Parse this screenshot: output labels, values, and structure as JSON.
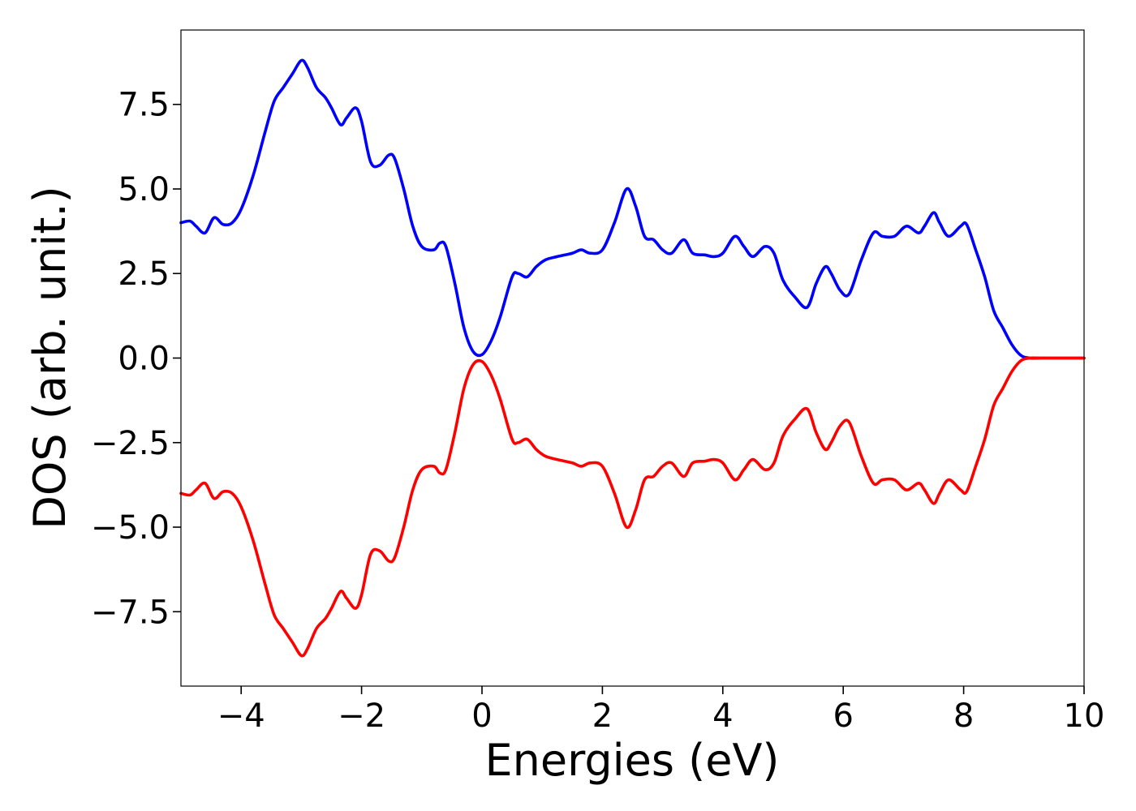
{
  "chart_data": {
    "type": "line",
    "xlabel": "Energies (eV)",
    "ylabel": "DOS (arb. unit.)",
    "xlim": [
      -5,
      10
    ],
    "ylim": [
      -9.7,
      9.7
    ],
    "xticks": [
      -4,
      -2,
      0,
      2,
      4,
      6,
      8,
      10
    ],
    "xtick_labels": [
      "−4",
      "−2",
      "0",
      "2",
      "4",
      "6",
      "8",
      "10"
    ],
    "yticks": [
      -7.5,
      -5.0,
      -2.5,
      0.0,
      2.5,
      5.0,
      7.5
    ],
    "ytick_labels": [
      "−7.5",
      "−5.0",
      "−2.5",
      "0.0",
      "2.5",
      "5.0",
      "7.5"
    ],
    "grid": false,
    "series": [
      {
        "color": "#0000ff",
        "x": [
          -5.0,
          -4.85,
          -4.75,
          -4.6,
          -4.45,
          -4.3,
          -4.15,
          -4.0,
          -3.8,
          -3.6,
          -3.45,
          -3.3,
          -3.15,
          -3.0,
          -2.9,
          -2.75,
          -2.6,
          -2.5,
          -2.35,
          -2.25,
          -2.1,
          -2.0,
          -1.85,
          -1.7,
          -1.55,
          -1.45,
          -1.3,
          -1.15,
          -1.0,
          -0.8,
          -0.7,
          -0.6,
          -0.45,
          -0.3,
          -0.15,
          0.0,
          0.15,
          0.3,
          0.5,
          0.6,
          0.75,
          0.9,
          1.05,
          1.25,
          1.5,
          1.65,
          1.8,
          2.0,
          2.2,
          2.4,
          2.55,
          2.7,
          2.85,
          3.0,
          3.15,
          3.35,
          3.5,
          3.7,
          3.85,
          4.0,
          4.2,
          4.35,
          4.5,
          4.7,
          4.85,
          5.0,
          5.2,
          5.4,
          5.55,
          5.7,
          5.8,
          5.95,
          6.1,
          6.3,
          6.5,
          6.65,
          6.85,
          7.05,
          7.25,
          7.35,
          7.5,
          7.6,
          7.75,
          7.95,
          8.05,
          8.2,
          8.35,
          8.5,
          8.65,
          8.8,
          8.95,
          9.1,
          9.3,
          10.0
        ],
        "y": [
          4.0,
          4.05,
          3.9,
          3.7,
          4.15,
          3.95,
          4.0,
          4.4,
          5.4,
          6.7,
          7.6,
          8.0,
          8.4,
          8.8,
          8.6,
          8.0,
          7.7,
          7.4,
          6.9,
          7.1,
          7.4,
          7.0,
          5.8,
          5.7,
          6.0,
          5.9,
          5.0,
          3.9,
          3.3,
          3.2,
          3.4,
          3.3,
          2.2,
          0.9,
          0.2,
          0.1,
          0.5,
          1.2,
          2.4,
          2.5,
          2.4,
          2.7,
          2.9,
          3.0,
          3.1,
          3.2,
          3.1,
          3.2,
          4.0,
          5.0,
          4.5,
          3.6,
          3.5,
          3.2,
          3.1,
          3.5,
          3.1,
          3.05,
          3.0,
          3.1,
          3.6,
          3.3,
          3.0,
          3.3,
          3.1,
          2.3,
          1.8,
          1.5,
          2.2,
          2.7,
          2.5,
          2.0,
          1.9,
          2.9,
          3.7,
          3.6,
          3.6,
          3.9,
          3.7,
          3.9,
          4.3,
          4.0,
          3.6,
          3.9,
          3.95,
          3.2,
          2.4,
          1.4,
          0.9,
          0.4,
          0.08,
          0.0,
          0.0,
          0.0
        ]
      },
      {
        "color": "#ff0000",
        "x": [
          -5.0,
          -4.85,
          -4.75,
          -4.6,
          -4.45,
          -4.3,
          -4.15,
          -4.0,
          -3.8,
          -3.6,
          -3.45,
          -3.3,
          -3.15,
          -3.0,
          -2.9,
          -2.75,
          -2.6,
          -2.5,
          -2.35,
          -2.25,
          -2.1,
          -2.0,
          -1.85,
          -1.7,
          -1.55,
          -1.45,
          -1.3,
          -1.15,
          -1.0,
          -0.8,
          -0.7,
          -0.6,
          -0.45,
          -0.3,
          -0.15,
          0.0,
          0.15,
          0.3,
          0.5,
          0.6,
          0.75,
          0.9,
          1.05,
          1.25,
          1.5,
          1.65,
          1.8,
          2.0,
          2.2,
          2.4,
          2.55,
          2.7,
          2.85,
          3.0,
          3.15,
          3.35,
          3.5,
          3.7,
          3.85,
          4.0,
          4.2,
          4.35,
          4.5,
          4.7,
          4.85,
          5.0,
          5.2,
          5.4,
          5.55,
          5.7,
          5.8,
          5.95,
          6.1,
          6.3,
          6.5,
          6.65,
          6.85,
          7.05,
          7.25,
          7.35,
          7.5,
          7.6,
          7.75,
          7.95,
          8.05,
          8.2,
          8.35,
          8.5,
          8.65,
          8.8,
          8.95,
          9.1,
          9.3,
          10.0
        ],
        "y": [
          -4.0,
          -4.05,
          -3.9,
          -3.7,
          -4.15,
          -3.95,
          -4.0,
          -4.4,
          -5.4,
          -6.7,
          -7.6,
          -8.0,
          -8.4,
          -8.8,
          -8.6,
          -8.0,
          -7.7,
          -7.4,
          -6.9,
          -7.1,
          -7.4,
          -7.0,
          -5.8,
          -5.7,
          -6.0,
          -5.9,
          -5.0,
          -3.9,
          -3.3,
          -3.2,
          -3.4,
          -3.3,
          -2.2,
          -0.9,
          -0.2,
          -0.1,
          -0.5,
          -1.2,
          -2.4,
          -2.5,
          -2.4,
          -2.7,
          -2.9,
          -3.0,
          -3.1,
          -3.2,
          -3.1,
          -3.2,
          -4.0,
          -5.0,
          -4.5,
          -3.6,
          -3.5,
          -3.2,
          -3.1,
          -3.5,
          -3.1,
          -3.05,
          -3.0,
          -3.1,
          -3.6,
          -3.3,
          -3.0,
          -3.3,
          -3.1,
          -2.3,
          -1.8,
          -1.5,
          -2.2,
          -2.7,
          -2.5,
          -2.0,
          -1.9,
          -2.9,
          -3.7,
          -3.6,
          -3.6,
          -3.9,
          -3.7,
          -3.9,
          -4.3,
          -4.0,
          -3.6,
          -3.9,
          -3.95,
          -3.2,
          -2.4,
          -1.4,
          -0.9,
          -0.4,
          -0.08,
          0.0,
          0.0,
          0.0
        ]
      }
    ]
  }
}
